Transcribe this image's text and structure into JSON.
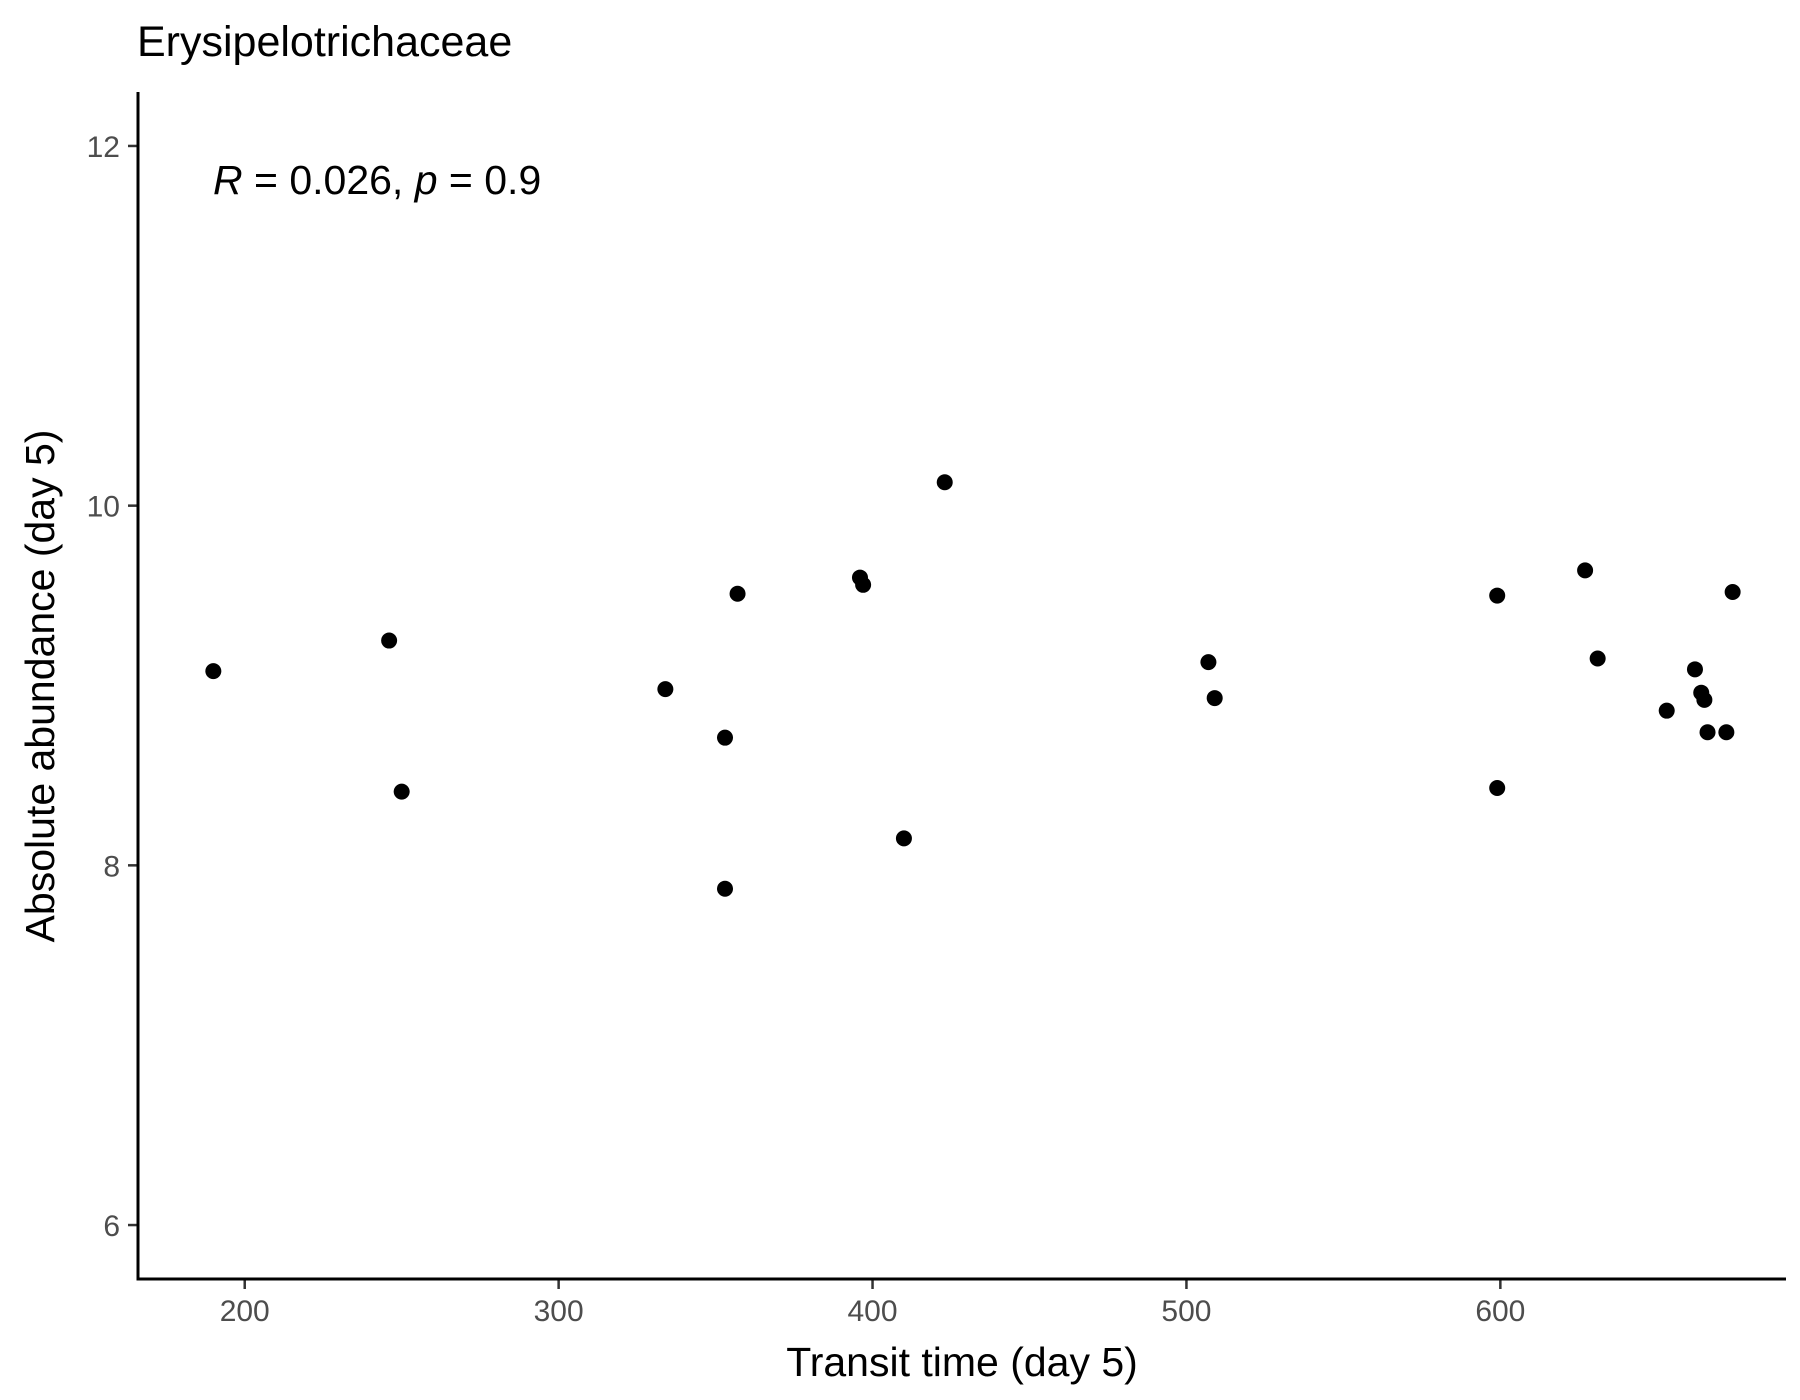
{
  "chart_data": {
    "type": "scatter",
    "title": "Erysipelotrichaceae",
    "xlabel": "Transit time (day 5)",
    "ylabel": "Absolute abundance (day 5)",
    "xlim": [
      166,
      691
    ],
    "ylim": [
      5.7,
      12.3
    ],
    "xticks": [
      200,
      300,
      400,
      500,
      600
    ],
    "yticks": [
      6,
      8,
      10,
      12
    ],
    "grid": false,
    "point_color": "#000000",
    "annotation": {
      "r_symbol": "R",
      "r_text": " = 0.026, ",
      "p_symbol": "p",
      "p_text": " = 0.9"
    },
    "points": [
      {
        "x": 190,
        "y": 9.08
      },
      {
        "x": 246,
        "y": 9.25
      },
      {
        "x": 250,
        "y": 8.41
      },
      {
        "x": 334,
        "y": 8.98
      },
      {
        "x": 353,
        "y": 8.71
      },
      {
        "x": 353,
        "y": 7.87
      },
      {
        "x": 357,
        "y": 9.51
      },
      {
        "x": 396,
        "y": 9.6
      },
      {
        "x": 397,
        "y": 9.56
      },
      {
        "x": 410,
        "y": 8.15
      },
      {
        "x": 423,
        "y": 10.13
      },
      {
        "x": 507,
        "y": 9.13
      },
      {
        "x": 509,
        "y": 8.93
      },
      {
        "x": 599,
        "y": 9.5
      },
      {
        "x": 599,
        "y": 8.43
      },
      {
        "x": 627,
        "y": 9.64
      },
      {
        "x": 631,
        "y": 9.15
      },
      {
        "x": 653,
        "y": 8.86
      },
      {
        "x": 662,
        "y": 9.09
      },
      {
        "x": 664,
        "y": 8.96
      },
      {
        "x": 665,
        "y": 8.92
      },
      {
        "x": 666,
        "y": 8.74
      },
      {
        "x": 672,
        "y": 8.74
      },
      {
        "x": 674,
        "y": 9.52
      }
    ]
  }
}
